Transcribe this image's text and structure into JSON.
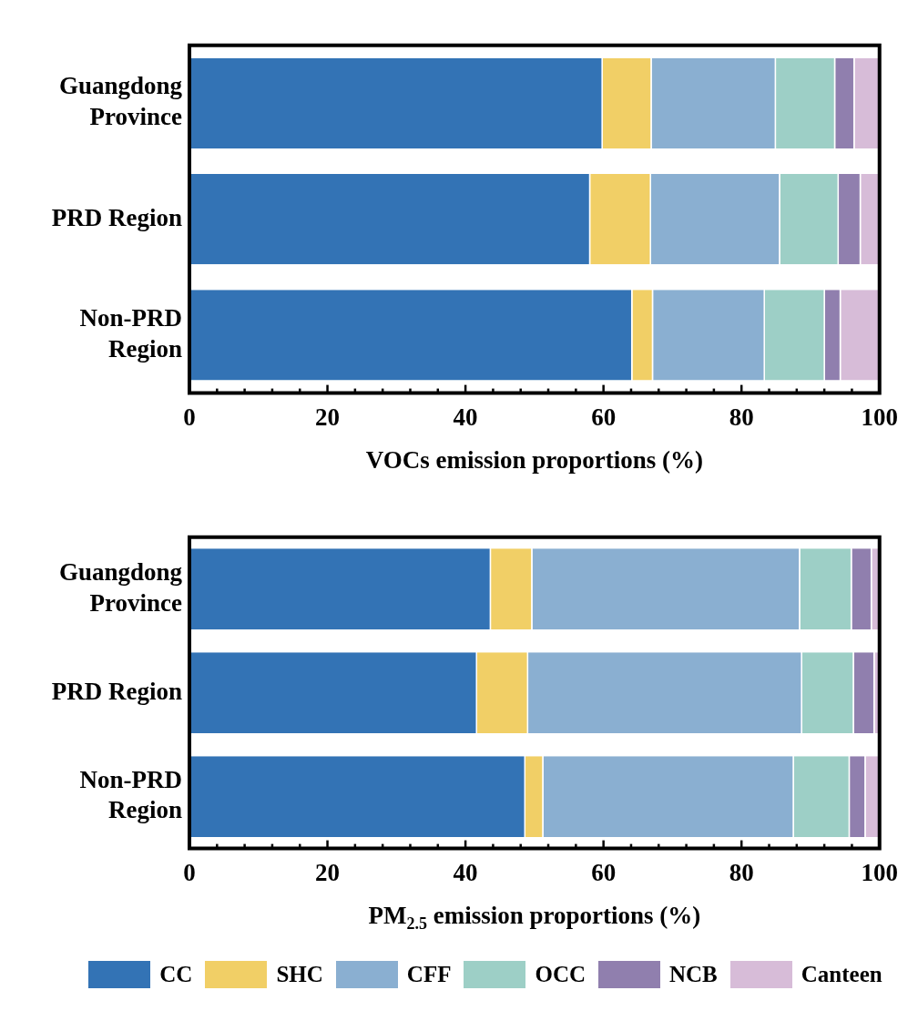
{
  "chart_data": [
    {
      "type": "bar",
      "orientation": "horizontal",
      "stacked": true,
      "xlabel": "VOCs emission proportions (%)",
      "categories": [
        "Guangdong Province",
        "PRD Region",
        "Non-PRD Region"
      ],
      "xlim": [
        0,
        100
      ],
      "xticks": [
        0,
        {
          "value": 4,
          "label": null
        },
        {
          "value": 8,
          "label": null
        },
        {
          "value": 12,
          "label": null
        },
        {
          "value": 16,
          "label": null
        },
        20,
        {
          "value": 24,
          "label": null
        },
        {
          "value": 28,
          "label": null
        },
        {
          "value": 32,
          "label": null
        },
        {
          "value": 36,
          "label": null
        },
        40,
        {
          "value": 44,
          "label": null
        },
        {
          "value": 48,
          "label": null
        },
        {
          "value": 52,
          "label": null
        },
        {
          "value": 56,
          "label": null
        },
        60,
        {
          "value": 64,
          "label": null
        },
        {
          "value": 68,
          "label": null
        },
        {
          "value": 72,
          "label": null
        },
        {
          "value": 76,
          "label": null
        },
        80,
        {
          "value": 84,
          "label": null
        },
        {
          "value": 88,
          "label": null
        },
        {
          "value": 92,
          "label": null
        },
        {
          "value": 96,
          "label": null
        },
        100
      ],
      "grid": false,
      "legend": false,
      "series": [
        {
          "color": "#3373b5",
          "values": [
            59.9,
            58.1,
            64.2
          ]
        },
        {
          "color": "#f1cf66",
          "values": [
            7.1,
            8.8,
            3.0
          ]
        },
        {
          "color": "#8aafd1",
          "values": [
            18.0,
            18.7,
            16.2
          ]
        },
        {
          "color": "#9dcfc6",
          "values": [
            8.6,
            8.5,
            8.7
          ]
        },
        {
          "color": "#907fae",
          "values": [
            2.8,
            3.2,
            2.3
          ]
        },
        {
          "color": "#d7bcd8",
          "values": [
            3.6,
            2.7,
            5.6
          ]
        }
      ]
    },
    {
      "type": "bar",
      "orientation": "horizontal",
      "stacked": true,
      "xlabel": "PM$_{2.5}$ emission proportions (%)",
      "categories": [
        "Guangdong Province",
        "PRD Region",
        "Non-PRD Region"
      ],
      "xlim": [
        0,
        100
      ],
      "xticks": [
        0,
        {
          "value": 4,
          "label": null
        },
        {
          "value": 8,
          "label": null
        },
        {
          "value": 12,
          "label": null
        },
        {
          "value": 16,
          "label": null
        },
        20,
        {
          "value": 24,
          "label": null
        },
        {
          "value": 28,
          "label": null
        },
        {
          "value": 32,
          "label": null
        },
        {
          "value": 36,
          "label": null
        },
        40,
        {
          "value": 44,
          "label": null
        },
        {
          "value": 48,
          "label": null
        },
        {
          "value": 52,
          "label": null
        },
        {
          "value": 56,
          "label": null
        },
        60,
        {
          "value": 64,
          "label": null
        },
        {
          "value": 68,
          "label": null
        },
        {
          "value": 72,
          "label": null
        },
        {
          "value": 76,
          "label": null
        },
        80,
        {
          "value": 84,
          "label": null
        },
        {
          "value": 88,
          "label": null
        },
        {
          "value": 92,
          "label": null
        },
        {
          "value": 96,
          "label": null
        },
        100
      ],
      "grid": false,
      "legend": "bottom",
      "series": [
        {
          "name": "CC",
          "color": "#3373b5",
          "values": [
            43.7,
            41.7,
            48.7
          ]
        },
        {
          "name": "SHC",
          "color": "#f1cf66",
          "values": [
            6.0,
            7.4,
            2.6
          ]
        },
        {
          "name": "CFF",
          "color": "#8aafd1",
          "values": [
            38.8,
            39.7,
            36.3
          ]
        },
        {
          "name": "OCC",
          "color": "#9dcfc6",
          "values": [
            7.5,
            7.5,
            8.1
          ]
        },
        {
          "name": "NCB",
          "color": "#907fae",
          "values": [
            2.9,
            3.0,
            2.3
          ]
        },
        {
          "name": "Canteen",
          "color": "#d7bcd8",
          "values": [
            1.1,
            0.7,
            2.0
          ]
        }
      ]
    }
  ]
}
